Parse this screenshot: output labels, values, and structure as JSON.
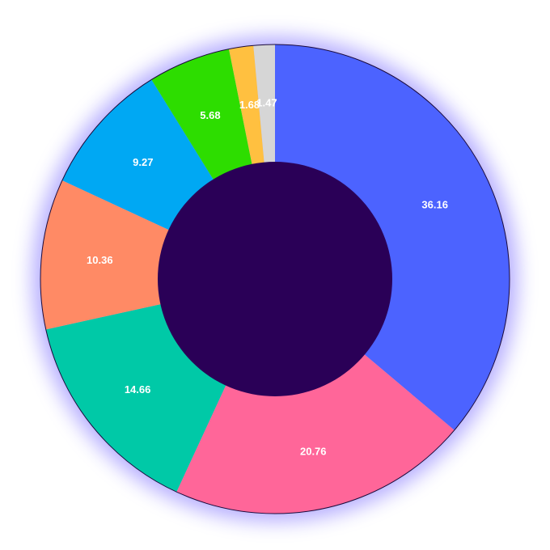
{
  "chart_data": {
    "type": "pie",
    "categories": [
      "",
      "",
      "",
      "",
      "",
      "",
      "",
      ""
    ],
    "values": [
      36.16,
      20.76,
      14.66,
      10.36,
      9.27,
      5.68,
      1.68,
      1.47
    ],
    "labels": [
      "36.16",
      "20.76",
      "14.66",
      "10.36",
      "9.27",
      "5.68",
      "1.68",
      "1.47"
    ],
    "colors": [
      "#4c63ff",
      "#ff6699",
      "#00c9a7",
      "#ff8a65",
      "#00a8f3",
      "#2ddd00",
      "#ffc040",
      "#d6d6d6"
    ],
    "hole_color": "#2a0057",
    "glow_color": "#7a6cff",
    "donut": true,
    "start_angle_deg": 0,
    "direction": "clockwise"
  }
}
